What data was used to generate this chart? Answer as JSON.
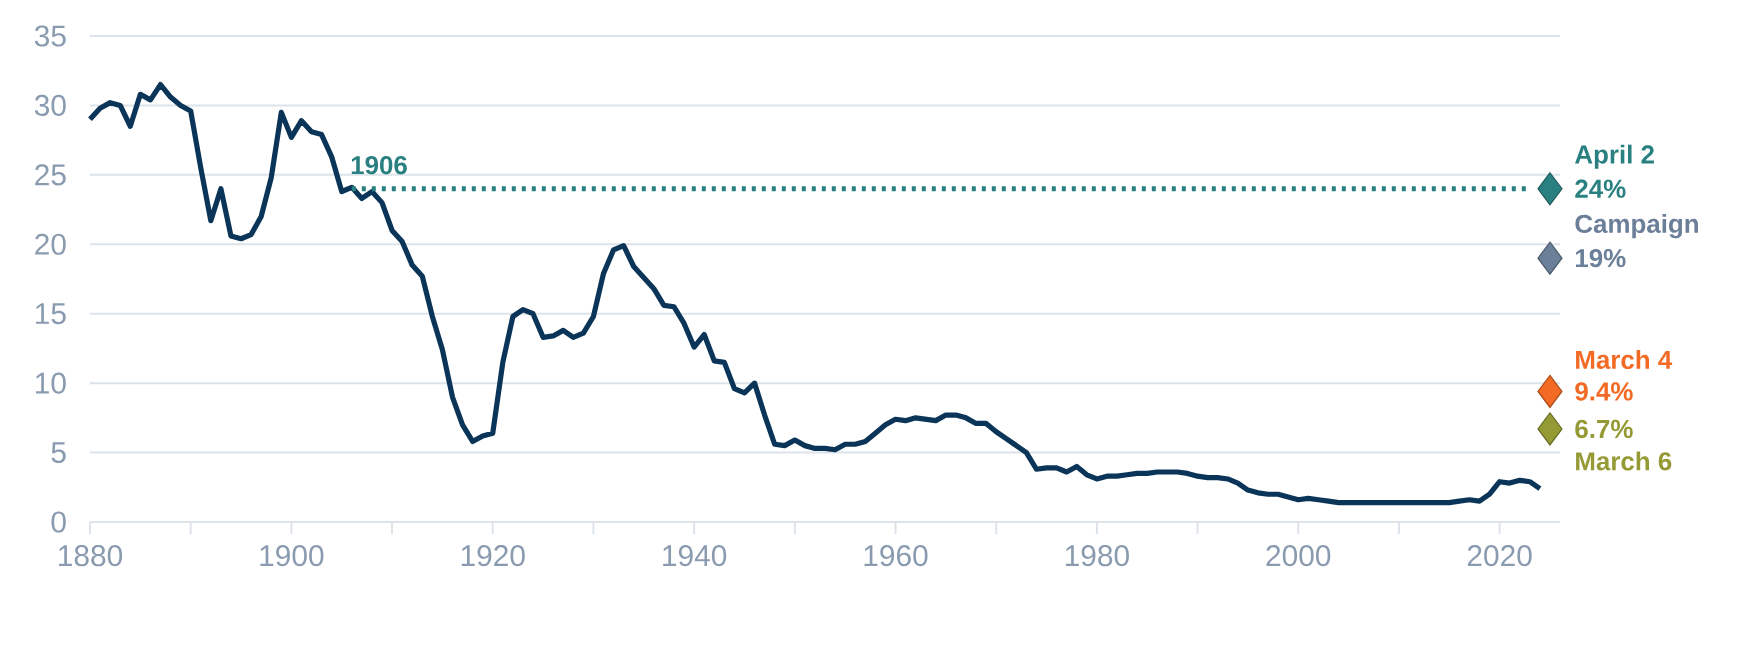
{
  "chart_data": {
    "type": "line",
    "marker": "none",
    "grid": "y",
    "xlim": [
      1880,
      2026
    ],
    "ylim": [
      0,
      35
    ],
    "xticks": [
      1880,
      {
        "value": 1890,
        "label": null
      },
      1900,
      {
        "value": 1910,
        "label": null
      },
      1920,
      {
        "value": 1930,
        "label": null
      },
      1940,
      {
        "value": 1950,
        "label": null
      },
      1960,
      {
        "value": 1970,
        "label": null
      },
      1980,
      {
        "value": 1990,
        "label": null
      },
      2000,
      {
        "value": 2010,
        "label": null
      },
      2020
    ],
    "yticks": [
      0,
      5,
      10,
      15,
      20,
      25,
      30,
      35
    ],
    "annotations": [
      {
        "text": "1906",
        "x": 1906,
        "y": 24
      }
    ],
    "series": [
      {
        "type": "line",
        "color": "#0b3558",
        "line_style": "solid",
        "x": [
          1880,
          1881,
          1882,
          1883,
          1884,
          1885,
          1886,
          1887,
          1888,
          1889,
          1890,
          1891,
          1892,
          1893,
          1894,
          1895,
          1896,
          1897,
          1898,
          1899,
          1900,
          1901,
          1902,
          1903,
          1904,
          1905,
          1906,
          1907,
          1908,
          1909,
          1910,
          1911,
          1912,
          1913,
          1914,
          1915,
          1916,
          1917,
          1918,
          1919,
          1920,
          1921,
          1922,
          1923,
          1924,
          1925,
          1926,
          1927,
          1928,
          1929,
          1930,
          1931,
          1932,
          1933,
          1934,
          1935,
          1936,
          1937,
          1938,
          1939,
          1940,
          1941,
          1942,
          1943,
          1944,
          1945,
          1946,
          1947,
          1948,
          1949,
          1950,
          1951,
          1952,
          1953,
          1954,
          1955,
          1956,
          1957,
          1958,
          1959,
          1960,
          1961,
          1962,
          1963,
          1964,
          1965,
          1966,
          1967,
          1968,
          1969,
          1970,
          1971,
          1972,
          1973,
          1974,
          1975,
          1976,
          1977,
          1978,
          1979,
          1980,
          1981,
          1982,
          1983,
          1984,
          1985,
          1986,
          1987,
          1988,
          1989,
          1990,
          1991,
          1992,
          1993,
          1994,
          1995,
          1996,
          1997,
          1998,
          1999,
          2000,
          2001,
          2002,
          2003,
          2004,
          2006,
          2008,
          2010,
          2012,
          2014,
          2015,
          2016,
          2017,
          2018,
          2019,
          2020,
          2021,
          2022,
          2023,
          2024
        ],
        "values": [
          29,
          29.8,
          30.2,
          30,
          28.5,
          30.8,
          30.4,
          31.5,
          30.6,
          30,
          29.6,
          25.5,
          21.7,
          24,
          20.6,
          20.4,
          20.7,
          22,
          24.8,
          29.5,
          27.7,
          28.9,
          28.1,
          27.9,
          26.3,
          23.8,
          24.1,
          23.3,
          23.8,
          23,
          21,
          20.2,
          18.5,
          17.7,
          14.8,
          12.4,
          9,
          7,
          5.8,
          6.2,
          6.4,
          11.5,
          14.8,
          15.3,
          15,
          13.3,
          13.4,
          13.8,
          13.3,
          13.6,
          14.8,
          17.9,
          19.6,
          19.9,
          18.4,
          17.6,
          16.8,
          15.6,
          15.5,
          14.3,
          12.6,
          13.5,
          11.6,
          11.5,
          9.6,
          9.3,
          10,
          7.7,
          5.6,
          5.5,
          5.9,
          5.5,
          5.3,
          5.3,
          5.2,
          5.6,
          5.6,
          5.8,
          6.4,
          7,
          7.4,
          7.3,
          7.5,
          7.4,
          7.3,
          7.7,
          7.7,
          7.5,
          7.1,
          7.1,
          6.5,
          6,
          5.5,
          5,
          3.8,
          3.9,
          3.9,
          3.6,
          4,
          3.4,
          3.1,
          3.3,
          3.3,
          3.4,
          3.5,
          3.5,
          3.6,
          3.6,
          3.6,
          3.5,
          3.3,
          3.2,
          3.2,
          3.1,
          2.8,
          2.3,
          2.1,
          2,
          2,
          1.8,
          1.6,
          1.7,
          1.6,
          1.5,
          1.4,
          1.4,
          1.4,
          1.4,
          1.4,
          1.4,
          1.4,
          1.5,
          1.6,
          1.5,
          2,
          2.9,
          2.8,
          3,
          2.9,
          2.4
        ]
      },
      {
        "type": "line",
        "color": "#2a8080",
        "line_style": "dotted",
        "x": [
          1906,
          2023
        ],
        "values": [
          24,
          24
        ]
      },
      {
        "type": "scatter",
        "marker": "diamond",
        "name": "April 2",
        "color": "#2a8080",
        "x": [
          2025
        ],
        "values": [
          24
        ],
        "value_labels": [
          "24%"
        ]
      },
      {
        "type": "scatter",
        "marker": "diamond",
        "name": "Campaign",
        "color": "#6b7f99",
        "x": [
          2025
        ],
        "values": [
          19
        ],
        "value_labels": [
          "19%"
        ]
      },
      {
        "type": "scatter",
        "marker": "diamond",
        "name": "March 4",
        "color": "#f26a24",
        "x": [
          2025
        ],
        "values": [
          9.4
        ],
        "value_labels": [
          "9.4%"
        ]
      },
      {
        "type": "scatter",
        "marker": "diamond",
        "name": "March 6",
        "color": "#959a35",
        "x": [
          2025
        ],
        "values": [
          6.7
        ],
        "value_labels": [
          "6.7%"
        ]
      }
    ]
  }
}
